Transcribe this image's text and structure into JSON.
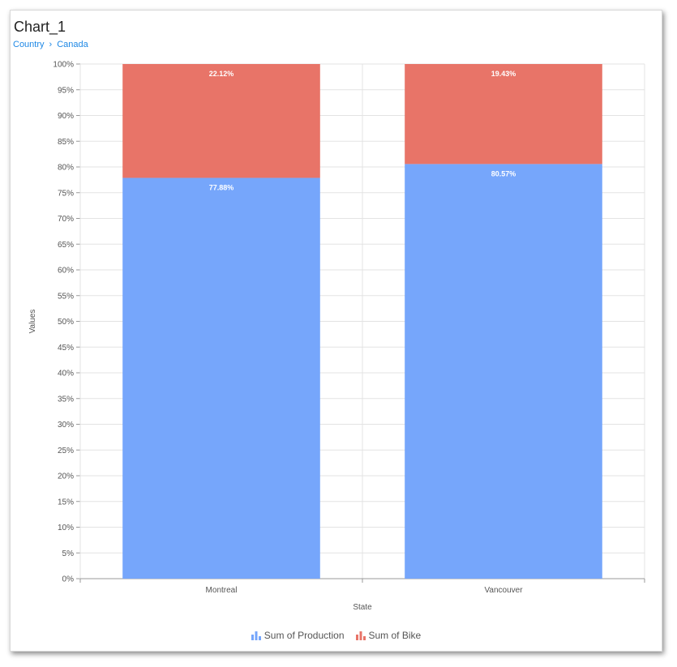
{
  "chart": {
    "title": "Chart_1",
    "breadcrumb": [
      "Country",
      "Canada"
    ]
  },
  "colors": {
    "production": "#76a6fb",
    "bike": "#e87468",
    "grid": "#e3e3e3",
    "axis": "#999999",
    "label": "#555555",
    "link": "#1e88e5"
  },
  "legend": {
    "items": [
      {
        "label": "Sum of Production",
        "icon": "bar-chart-icon",
        "color": "#76a6fb"
      },
      {
        "label": "Sum of Bike",
        "icon": "bar-chart-icon",
        "color": "#e87468"
      }
    ]
  },
  "chart_data": {
    "type": "bar",
    "stacked": "percent",
    "categories": [
      "Montreal",
      "Vancouver"
    ],
    "series": [
      {
        "name": "Sum of Production",
        "values": [
          77.88,
          80.57
        ],
        "labels": [
          "77.88%",
          "80.57%"
        ],
        "color": "#76a6fb"
      },
      {
        "name": "Sum of Bike",
        "values": [
          22.12,
          19.43
        ],
        "labels": [
          "22.12%",
          "19.43%"
        ],
        "color": "#e87468"
      }
    ],
    "xlabel": "State",
    "ylabel": "Values",
    "ylim": [
      0,
      100
    ],
    "yticks": [
      "0%",
      "5%",
      "10%",
      "15%",
      "20%",
      "25%",
      "30%",
      "35%",
      "40%",
      "45%",
      "50%",
      "55%",
      "60%",
      "65%",
      "70%",
      "75%",
      "80%",
      "85%",
      "90%",
      "95%",
      "100%"
    ],
    "grid": true,
    "legend_position": "bottom"
  }
}
